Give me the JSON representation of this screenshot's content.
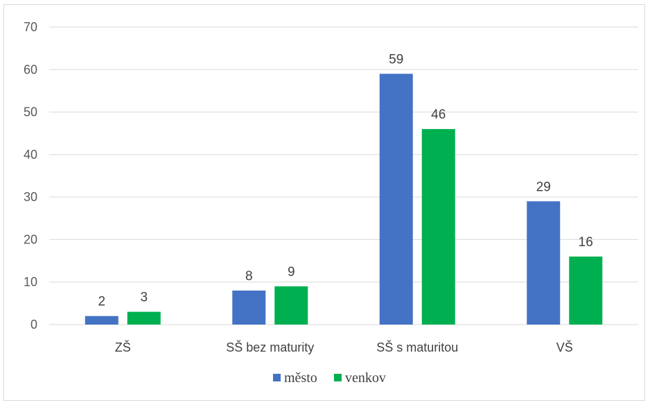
{
  "chart_data": {
    "type": "bar",
    "categories": [
      "ZŠ",
      "SŠ bez maturity",
      "SŠ s maturitou",
      "VŠ"
    ],
    "series": [
      {
        "name": "město",
        "values": [
          2,
          8,
          59,
          29
        ],
        "color": "#4472c4"
      },
      {
        "name": "venkov",
        "values": [
          3,
          9,
          46,
          16
        ],
        "color": "#00b050"
      }
    ],
    "ylim": [
      0,
      70
    ],
    "yticks": [
      0,
      10,
      20,
      30,
      40,
      50,
      60,
      70
    ],
    "grid": true,
    "legend_position": "bottom",
    "data_labels": true,
    "gridline_color": "#d9d9d9"
  }
}
